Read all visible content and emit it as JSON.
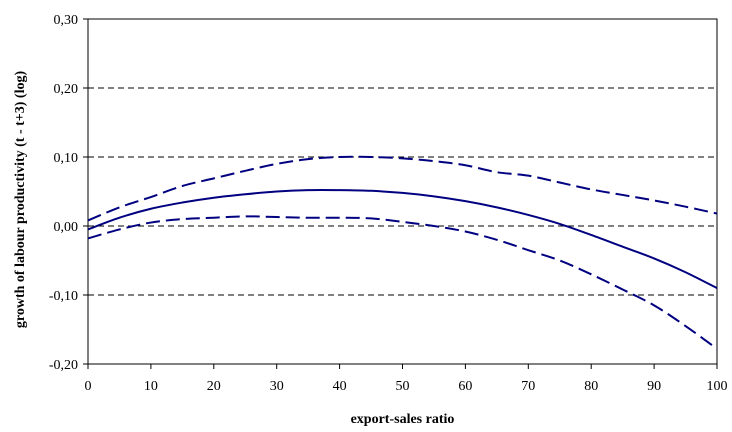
{
  "chart_data": {
    "type": "line",
    "title": "",
    "xlabel": "export-sales ratio",
    "ylabel": "growth of labour productivity (t - t+3) (log)",
    "xlim": [
      0,
      100
    ],
    "ylim": [
      -0.2,
      0.3
    ],
    "x_ticks": [
      "0",
      "10",
      "20",
      "30",
      "40",
      "50",
      "60",
      "70",
      "80",
      "90",
      "100"
    ],
    "y_ticks": [
      "-0,20",
      "-0,10",
      "0,00",
      "0,10",
      "0,20",
      "0,30"
    ],
    "grid": "horizontal dashed",
    "legend": "none",
    "colors": {
      "series": "#000080",
      "grid": "#000000",
      "frame": "#000000"
    },
    "x": [
      0,
      5,
      10,
      15,
      20,
      25,
      30,
      35,
      40,
      45,
      50,
      55,
      60,
      65,
      70,
      75,
      80,
      85,
      90,
      95,
      100
    ],
    "series": [
      {
        "style": "solid",
        "values": [
          -0.005,
          0.012,
          0.025,
          0.034,
          0.041,
          0.046,
          0.05,
          0.052,
          0.052,
          0.051,
          0.048,
          0.043,
          0.036,
          0.027,
          0.016,
          0.003,
          -0.013,
          -0.03,
          -0.047,
          -0.067,
          -0.09
        ]
      },
      {
        "style": "dashed",
        "values": [
          0.008,
          0.027,
          0.042,
          0.058,
          0.069,
          0.08,
          0.09,
          0.097,
          0.1,
          0.1,
          0.098,
          0.094,
          0.088,
          0.078,
          0.073,
          0.063,
          0.053,
          0.045,
          0.037,
          0.028,
          0.018
        ]
      },
      {
        "style": "dashed",
        "values": [
          -0.018,
          -0.005,
          0.005,
          0.01,
          0.012,
          0.014,
          0.013,
          0.012,
          0.012,
          0.011,
          0.006,
          0.0,
          -0.008,
          -0.02,
          -0.035,
          -0.05,
          -0.07,
          -0.092,
          -0.115,
          -0.145,
          -0.178
        ]
      }
    ]
  }
}
